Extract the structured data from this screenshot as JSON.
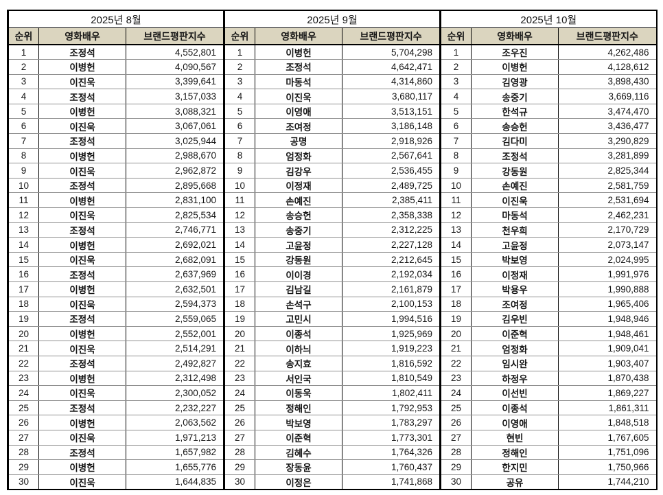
{
  "colors": {
    "header_bg": "#dbd5bf",
    "grid": "#000000",
    "row_line": "#8f8f8f"
  },
  "chart_data": [
    {
      "type": "table",
      "title": "2025년 8월",
      "columns": [
        "순위",
        "영화배우",
        "브랜드평판지수"
      ],
      "rows": [
        [
          1,
          "조정석",
          4552801
        ],
        [
          2,
          "이병헌",
          4090567
        ],
        [
          3,
          "이진욱",
          3399641
        ],
        [
          4,
          "조정석",
          3157033
        ],
        [
          5,
          "이병헌",
          3088321
        ],
        [
          6,
          "이진욱",
          3067061
        ],
        [
          7,
          "조정석",
          3025944
        ],
        [
          8,
          "이병헌",
          2988670
        ],
        [
          9,
          "이진욱",
          2962872
        ],
        [
          10,
          "조정석",
          2895668
        ],
        [
          11,
          "이병헌",
          2831100
        ],
        [
          12,
          "이진욱",
          2825534
        ],
        [
          13,
          "조정석",
          2746771
        ],
        [
          14,
          "이병헌",
          2692021
        ],
        [
          15,
          "이진욱",
          2682091
        ],
        [
          16,
          "조정석",
          2637969
        ],
        [
          17,
          "이병헌",
          2632501
        ],
        [
          18,
          "이진욱",
          2594373
        ],
        [
          19,
          "조정석",
          2559065
        ],
        [
          20,
          "이병헌",
          2552001
        ],
        [
          21,
          "이진욱",
          2514291
        ],
        [
          22,
          "조정석",
          2492827
        ],
        [
          23,
          "이병헌",
          2312498
        ],
        [
          24,
          "이진욱",
          2300052
        ],
        [
          25,
          "조정석",
          2232227
        ],
        [
          26,
          "이병헌",
          2063562
        ],
        [
          27,
          "이진욱",
          1971213
        ],
        [
          28,
          "조정석",
          1657982
        ],
        [
          29,
          "이병헌",
          1655776
        ],
        [
          30,
          "이진욱",
          1644835
        ]
      ]
    },
    {
      "type": "table",
      "title": "2025년 9월",
      "columns": [
        "순위",
        "영화배우",
        "브랜드평판지수"
      ],
      "rows": [
        [
          1,
          "이병헌",
          5704298
        ],
        [
          2,
          "조정석",
          4642471
        ],
        [
          3,
          "마동석",
          4314860
        ],
        [
          4,
          "이진욱",
          3680117
        ],
        [
          5,
          "이영애",
          3513151
        ],
        [
          6,
          "조여정",
          3186148
        ],
        [
          7,
          "공명",
          2918926
        ],
        [
          8,
          "엄정화",
          2567641
        ],
        [
          9,
          "김강우",
          2536455
        ],
        [
          10,
          "이정재",
          2489725
        ],
        [
          11,
          "손예진",
          2385411
        ],
        [
          12,
          "송승헌",
          2358338
        ],
        [
          13,
          "송중기",
          2312225
        ],
        [
          14,
          "고윤정",
          2227128
        ],
        [
          15,
          "강동원",
          2212645
        ],
        [
          16,
          "이이경",
          2192034
        ],
        [
          17,
          "김남길",
          2161879
        ],
        [
          18,
          "손석구",
          2100153
        ],
        [
          19,
          "고민시",
          1994516
        ],
        [
          20,
          "이종석",
          1925969
        ],
        [
          21,
          "이하늬",
          1919223
        ],
        [
          22,
          "송지효",
          1816592
        ],
        [
          23,
          "서인국",
          1810549
        ],
        [
          24,
          "이동욱",
          1802411
        ],
        [
          25,
          "정해인",
          1792953
        ],
        [
          26,
          "박보영",
          1783297
        ],
        [
          27,
          "이준혁",
          1773301
        ],
        [
          28,
          "김혜수",
          1764326
        ],
        [
          29,
          "장동윤",
          1760437
        ],
        [
          30,
          "이정은",
          1741868
        ]
      ]
    },
    {
      "type": "table",
      "title": "2025년 10월",
      "columns": [
        "순위",
        "영화배우",
        "브랜드평판지수"
      ],
      "rows": [
        [
          1,
          "조우진",
          4262486
        ],
        [
          2,
          "이병헌",
          4128612
        ],
        [
          3,
          "김영광",
          3898430
        ],
        [
          4,
          "송중기",
          3669116
        ],
        [
          5,
          "한석규",
          3474470
        ],
        [
          6,
          "송승헌",
          3436477
        ],
        [
          7,
          "김다미",
          3290829
        ],
        [
          8,
          "조정석",
          3281899
        ],
        [
          9,
          "강동원",
          2825344
        ],
        [
          10,
          "손예진",
          2581759
        ],
        [
          11,
          "이진욱",
          2531694
        ],
        [
          12,
          "마동석",
          2462231
        ],
        [
          13,
          "천우희",
          2170729
        ],
        [
          14,
          "고윤정",
          2073147
        ],
        [
          15,
          "박보영",
          2024995
        ],
        [
          16,
          "이정재",
          1991976
        ],
        [
          17,
          "박용우",
          1990888
        ],
        [
          18,
          "조여정",
          1965406
        ],
        [
          19,
          "김우빈",
          1948946
        ],
        [
          20,
          "이준혁",
          1948461
        ],
        [
          21,
          "엄정화",
          1909041
        ],
        [
          22,
          "임시완",
          1903407
        ],
        [
          23,
          "하정우",
          1870438
        ],
        [
          24,
          "이선빈",
          1869227
        ],
        [
          25,
          "이종석",
          1861311
        ],
        [
          26,
          "이영애",
          1848518
        ],
        [
          27,
          "현빈",
          1767605
        ],
        [
          28,
          "정해인",
          1751096
        ],
        [
          29,
          "한지민",
          1750966
        ],
        [
          30,
          "공유",
          1744210
        ]
      ]
    }
  ]
}
